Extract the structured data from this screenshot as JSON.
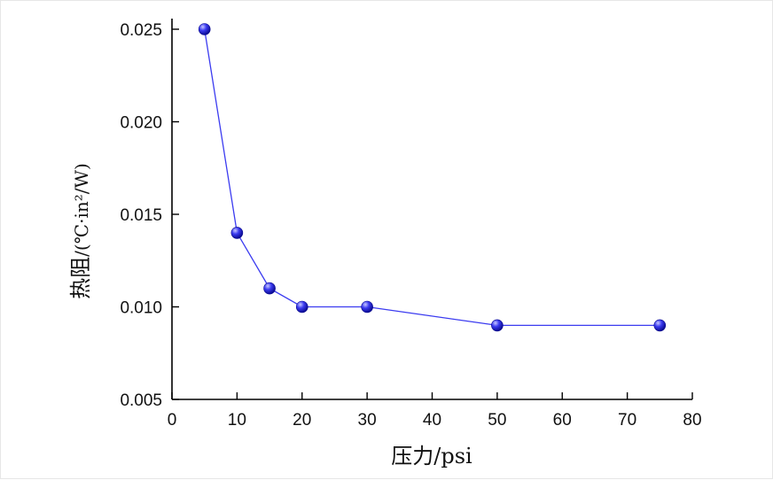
{
  "chart_data": {
    "type": "line",
    "title": "",
    "xlabel": "压力/psi",
    "ylabel_main": "热阻",
    "ylabel_unit": "/(℃·in²/W)",
    "x": [
      5,
      10,
      15,
      20,
      30,
      50,
      75
    ],
    "series": [
      {
        "values": [
          0.025,
          0.014,
          0.011,
          0.01,
          0.01,
          0.009,
          0.009
        ],
        "color": "#2a2ad8"
      }
    ],
    "xlim": [
      0,
      80
    ],
    "ylim": [
      0.005,
      0.025
    ],
    "xticks": [
      "0",
      "10",
      "20",
      "30",
      "40",
      "50",
      "60",
      "70",
      "80"
    ],
    "yticks": [
      "0.005",
      "0.010",
      "0.015",
      "0.020",
      "0.025"
    ],
    "grid": false,
    "legend": "none",
    "colors": {
      "line": "#3b3bf0",
      "marker": "#1a1ae0",
      "marker_highlight": "#c8c8ff"
    }
  }
}
